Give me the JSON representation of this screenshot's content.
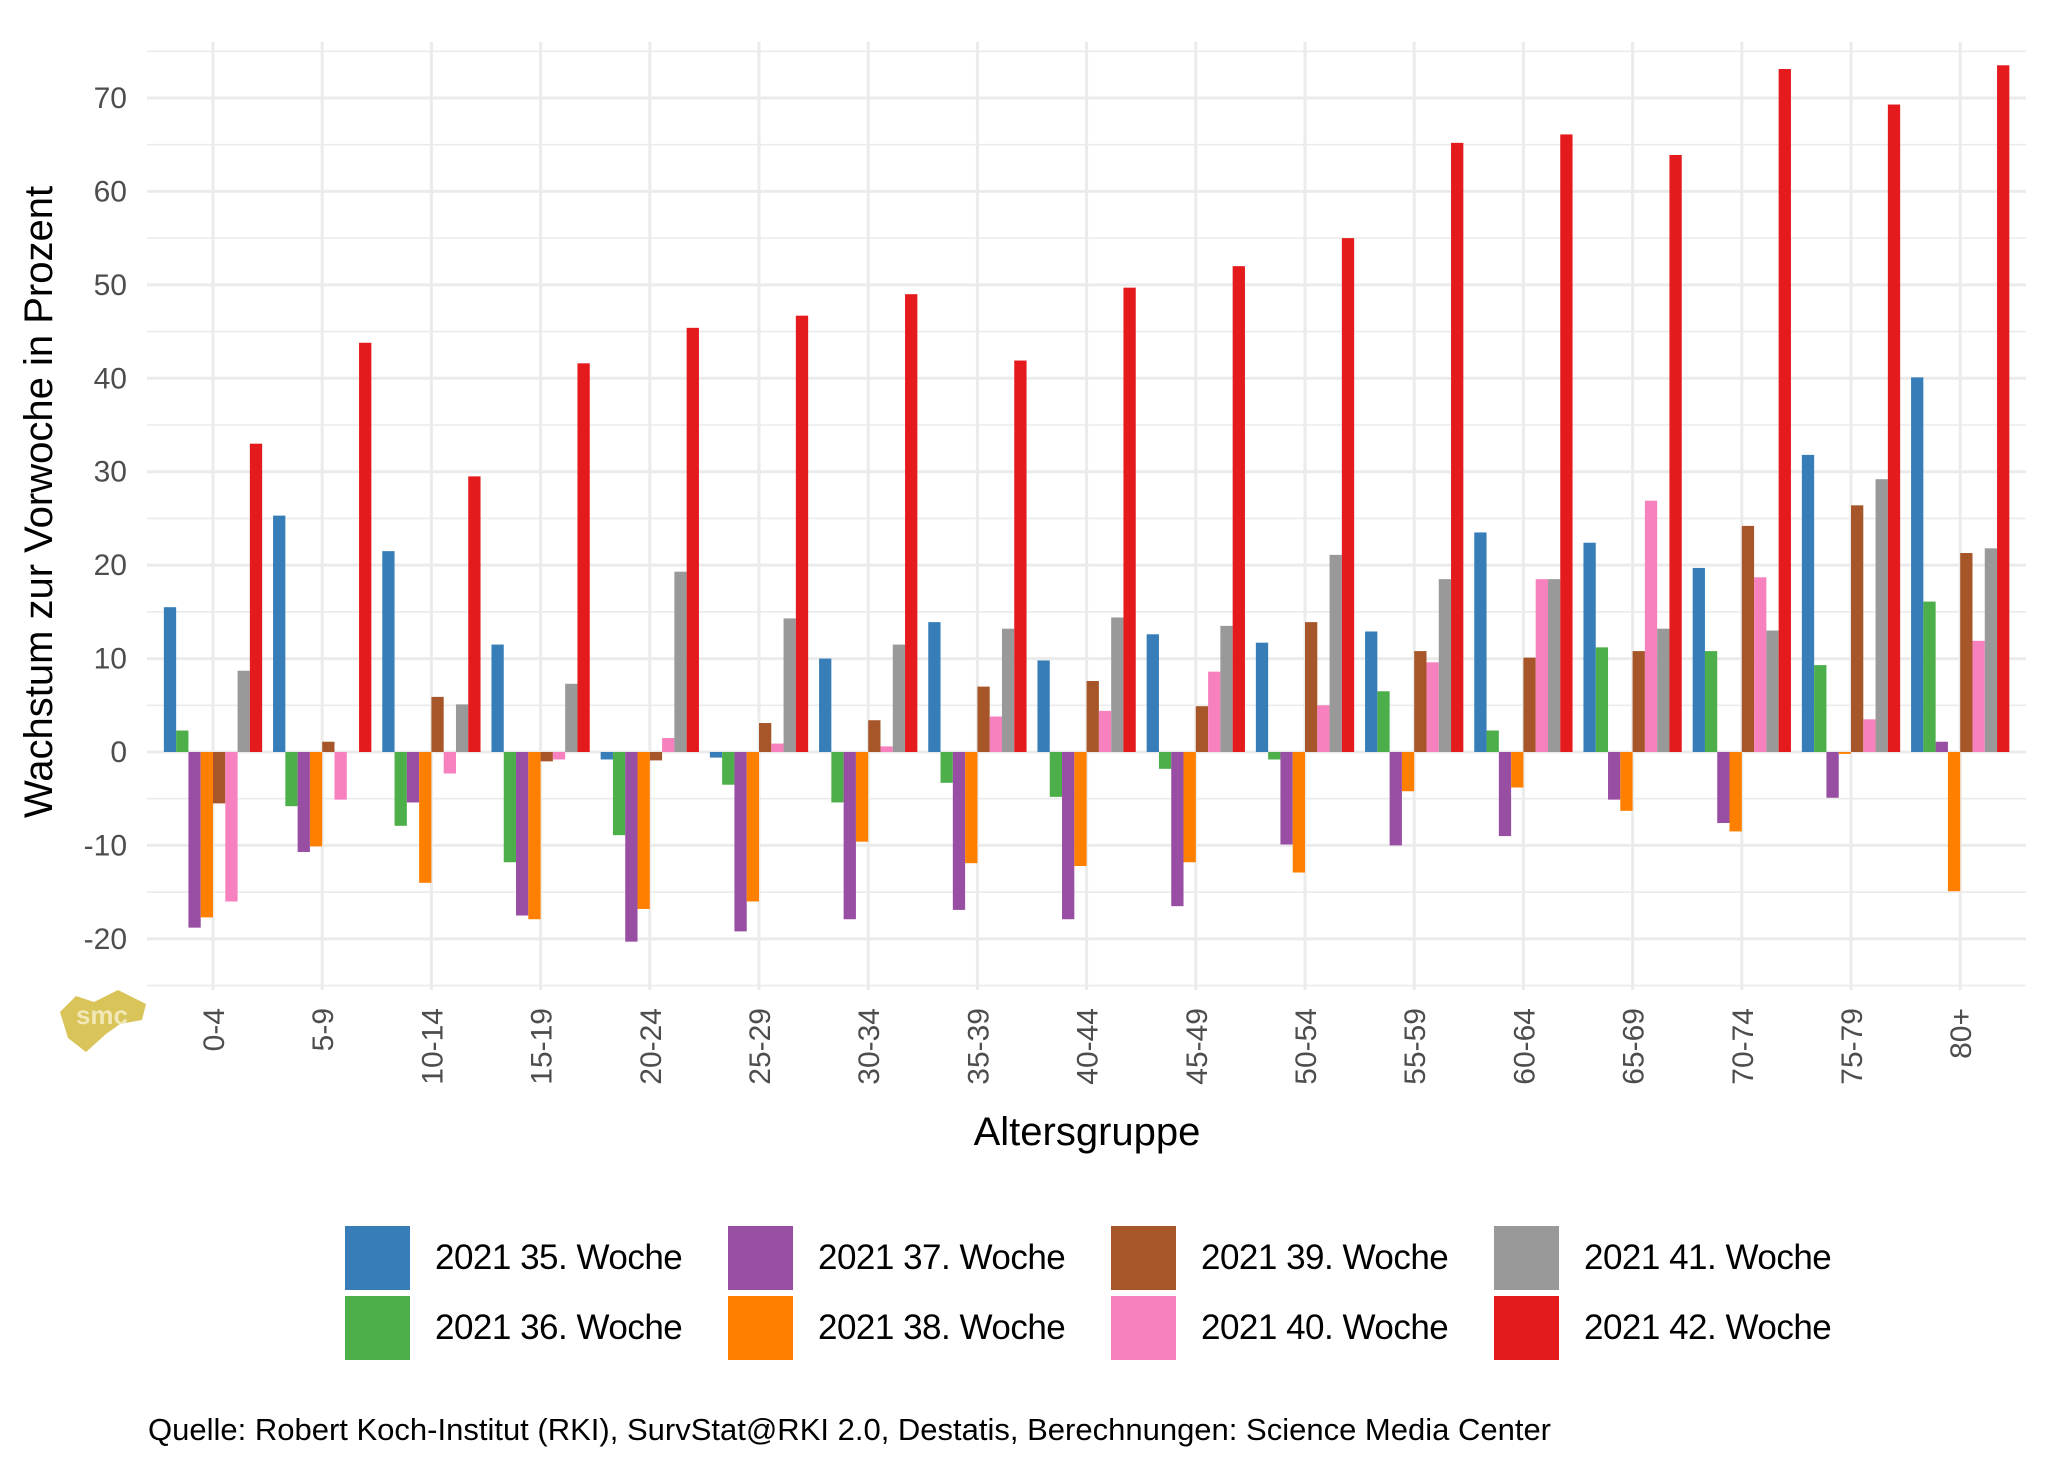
{
  "chart_data": {
    "type": "bar",
    "title": "",
    "xlabel": "Altersgruppe",
    "ylabel": "Wachstum zur Vorwoche in Prozent",
    "ylim": [
      -25,
      75
    ],
    "yticks": [
      -20,
      -10,
      0,
      10,
      20,
      30,
      40,
      50,
      60,
      70
    ],
    "ytick_labels": [
      "-20",
      "-10",
      "0",
      "10",
      "20",
      "30",
      "40",
      "50",
      "60",
      "70"
    ],
    "grid": true,
    "legend_position": "bottom",
    "categories": [
      "0-4",
      "5-9",
      "10-14",
      "15-19",
      "20-24",
      "25-29",
      "30-34",
      "35-39",
      "40-44",
      "45-49",
      "50-54",
      "55-59",
      "60-64",
      "65-69",
      "70-74",
      "75-79",
      "80+"
    ],
    "series": [
      {
        "name": "2021 35. Woche",
        "color": "#377EB8",
        "values": [
          15.5,
          25.3,
          21.5,
          11.5,
          -0.8,
          -0.6,
          10.0,
          13.9,
          9.8,
          12.6,
          11.7,
          12.9,
          23.5,
          22.4,
          19.7,
          31.8,
          40.1
        ]
      },
      {
        "name": "2021 36. Woche",
        "color": "#4DAF4A",
        "values": [
          2.3,
          -5.8,
          -7.9,
          -11.8,
          -8.9,
          -3.5,
          -5.4,
          -3.3,
          -4.8,
          -1.8,
          -0.8,
          6.5,
          2.3,
          11.2,
          10.8,
          9.3,
          16.1
        ]
      },
      {
        "name": "2021 37. Woche",
        "color": "#984EA3",
        "values": [
          -18.8,
          -10.7,
          -5.4,
          -17.5,
          -20.3,
          -19.2,
          -17.9,
          -16.9,
          -17.9,
          -16.5,
          -9.9,
          -10.0,
          -9.0,
          -5.1,
          -7.6,
          -4.9,
          1.1
        ]
      },
      {
        "name": "2021 38. Woche",
        "color": "#FF7F00",
        "values": [
          -17.7,
          -10.1,
          -14.0,
          -17.9,
          -16.8,
          -16.0,
          -9.6,
          -11.9,
          -12.2,
          -11.8,
          -12.9,
          -4.2,
          -3.8,
          -6.3,
          -8.5,
          -0.2,
          -14.9
        ]
      },
      {
        "name": "2021 39. Woche",
        "color": "#A65628",
        "values": [
          -5.5,
          1.1,
          5.9,
          -1.0,
          -0.9,
          3.1,
          3.4,
          7.0,
          7.6,
          4.9,
          13.9,
          10.8,
          10.1,
          10.8,
          24.2,
          26.4,
          21.3
        ]
      },
      {
        "name": "2021 40. Woche",
        "color": "#F781BF",
        "values": [
          -16.0,
          -5.1,
          -2.3,
          -0.8,
          1.5,
          0.9,
          0.6,
          3.8,
          4.4,
          8.6,
          5.0,
          9.6,
          18.5,
          26.9,
          18.7,
          3.5,
          11.9
        ]
      },
      {
        "name": "2021 41. Woche",
        "color": "#999999",
        "values": [
          8.7,
          0.0,
          5.1,
          7.3,
          19.3,
          14.3,
          11.5,
          13.2,
          14.4,
          13.5,
          21.1,
          18.5,
          18.5,
          13.2,
          13.0,
          29.2,
          21.8
        ]
      },
      {
        "name": "2021 42. Woche",
        "color": "#E41A1C",
        "values": [
          33.0,
          43.8,
          29.5,
          41.6,
          45.4,
          46.7,
          49.0,
          41.9,
          49.7,
          52.0,
          55.0,
          65.2,
          66.1,
          63.9,
          73.1,
          69.3,
          73.5
        ]
      }
    ],
    "caption": "Quelle: Robert Koch-Institut (RKI), SurvStat@RKI 2.0, Destatis, Berechnungen: Science Media Center",
    "logo_text": "smc"
  },
  "colors": {
    "grid": "#EBEBEB",
    "tick_text": "#4D4D4D",
    "logo": "#D9C45A"
  }
}
